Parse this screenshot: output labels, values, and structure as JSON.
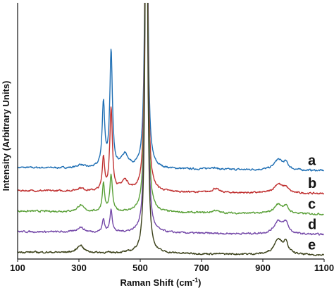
{
  "chart_data": {
    "type": "line",
    "xlabel": "Raman Shift (cm",
    "xlabel_superscript": "-1",
    "xlabel_suffix": ")",
    "ylabel": "Intensity (Arbitrary Units)",
    "xlim": [
      100,
      1100
    ],
    "ylim": [
      0,
      100
    ],
    "x_ticks": [
      100,
      300,
      500,
      700,
      900,
      1100
    ],
    "x_tick_labels": [
      "100",
      "300",
      "500",
      "700",
      "900",
      "1100"
    ],
    "grid": false,
    "legend": "none",
    "series": [
      {
        "name": "a",
        "color": "#1f6fb4",
        "baseline": 34.5,
        "peaks": [
          [
            305,
            1.2,
            12
          ],
          [
            380,
            25,
            5
          ],
          [
            405,
            45,
            5
          ],
          [
            450,
            5,
            14
          ],
          [
            520,
            200,
            4
          ],
          [
            735,
            0.8,
            14
          ],
          [
            950,
            4,
            16
          ],
          [
            975,
            2.5,
            10
          ]
        ]
      },
      {
        "name": "b",
        "color": "#c03030",
        "baseline": 25.5,
        "peaks": [
          [
            305,
            1.2,
            12
          ],
          [
            380,
            13,
            4.5
          ],
          [
            405,
            32,
            5
          ],
          [
            450,
            4,
            14
          ],
          [
            520,
            200,
            4
          ],
          [
            745,
            1.6,
            12
          ],
          [
            950,
            3.5,
            16
          ],
          [
            975,
            2,
            10
          ]
        ]
      },
      {
        "name": "c",
        "color": "#5aa038",
        "baseline": 17.5,
        "peaks": [
          [
            305,
            2.5,
            12
          ],
          [
            380,
            11,
            4.5
          ],
          [
            405,
            14,
            5
          ],
          [
            520,
            200,
            4
          ],
          [
            745,
            1,
            12
          ],
          [
            950,
            3.5,
            16
          ],
          [
            975,
            2.5,
            10
          ]
        ]
      },
      {
        "name": "d",
        "color": "#7448a8",
        "baseline": 9.5,
        "peaks": [
          [
            305,
            2,
            12
          ],
          [
            380,
            5,
            4.5
          ],
          [
            405,
            9,
            4.5
          ],
          [
            520,
            200,
            4
          ],
          [
            950,
            5,
            16
          ],
          [
            975,
            4,
            10
          ]
        ]
      },
      {
        "name": "e",
        "color": "#3a4019",
        "baseline": 1.5,
        "peaks": [
          [
            305,
            3,
            12
          ],
          [
            520,
            200,
            4
          ],
          [
            950,
            6,
            16
          ],
          [
            975,
            4,
            10
          ]
        ]
      }
    ]
  }
}
